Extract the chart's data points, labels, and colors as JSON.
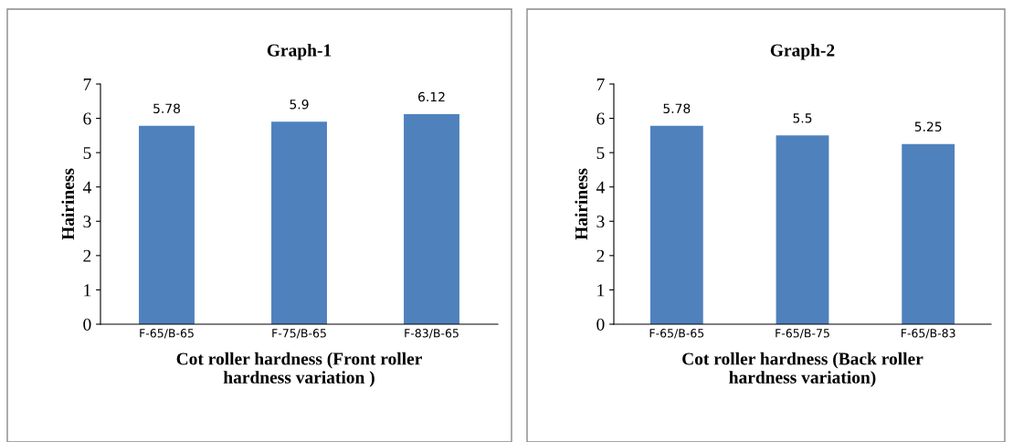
{
  "chart_data": [
    {
      "type": "bar",
      "title": "Graph-1",
      "xlabel": "Cot roller hardness (Front roller\nhardness variation )",
      "ylabel": "Hairiness",
      "categories": [
        "F-65/B-65",
        "F-75/B-65",
        "F-83/B-65"
      ],
      "values": [
        5.78,
        5.9,
        6.12
      ],
      "color": "#4f81bd",
      "ylim": [
        0,
        7
      ],
      "yticks": [
        0,
        1,
        2,
        3,
        4,
        5,
        6,
        7
      ],
      "data_labels": true,
      "grid": false,
      "legend": false
    },
    {
      "type": "bar",
      "title": "Graph-2",
      "xlabel": "Cot roller hardness (Back roller\nhardness variation)",
      "ylabel": "Hairiness",
      "categories": [
        "F-65/B-65",
        "F-65/B-75",
        "F-65/B-83"
      ],
      "values": [
        5.78,
        5.5,
        5.25
      ],
      "color": "#4f81bd",
      "ylim": [
        0,
        7
      ],
      "yticks": [
        0,
        1,
        2,
        3,
        4,
        5,
        6,
        7
      ],
      "data_labels": true,
      "grid": false,
      "legend": false
    }
  ]
}
